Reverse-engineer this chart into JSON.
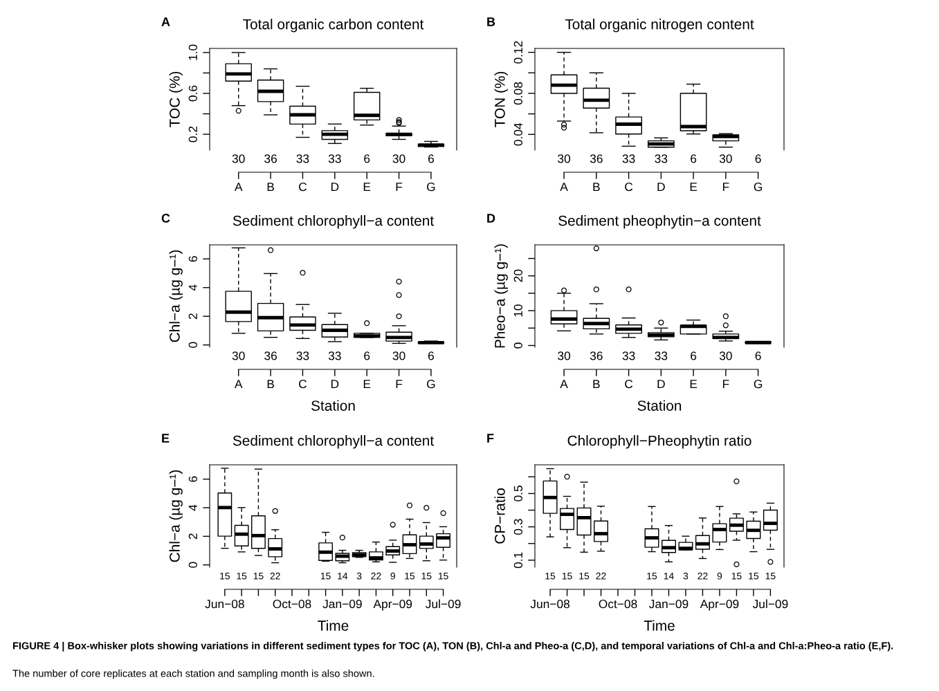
{
  "chart_data": [
    {
      "type": "box",
      "title": "Total organic carbon content",
      "ylabel": "TOC (%)",
      "annotations": [
        "A"
      ],
      "categories": [
        "A",
        "B",
        "C",
        "D",
        "E",
        "F",
        "G"
      ],
      "value_labels": [
        "30",
        "36",
        "33",
        "33",
        "6",
        "30",
        "6"
      ],
      "ylim": [
        0.045,
        1.04
      ],
      "yticks": [
        0.2,
        {
          "value": 0.4,
          "label": null
        },
        0.6,
        {
          "value": 0.8,
          "label": null
        },
        {
          "value": 1.0,
          "label": "1.0"
        }
      ],
      "boxes": [
        {
          "low": 0.48,
          "q1": 0.72,
          "median": 0.79,
          "q3": 0.89,
          "high": 1.0,
          "outliers": [
            0.43
          ]
        },
        {
          "low": 0.39,
          "q1": 0.52,
          "median": 0.62,
          "q3": 0.73,
          "high": 0.84
        },
        {
          "low": 0.17,
          "q1": 0.3,
          "median": 0.39,
          "q3": 0.475,
          "high": 0.67
        },
        {
          "low": 0.11,
          "q1": 0.15,
          "median": 0.2,
          "q3": 0.235,
          "high": 0.3
        },
        {
          "low": 0.29,
          "q1": 0.34,
          "median": 0.385,
          "q3": 0.61,
          "high": 0.65
        },
        {
          "low": 0.15,
          "q1": 0.185,
          "median": 0.2,
          "q3": 0.21,
          "high": 0.28,
          "outliers": [
            0.31,
            0.32,
            0.34
          ]
        },
        {
          "low": 0.075,
          "q1": 0.08,
          "median": 0.095,
          "q3": 0.1,
          "high": 0.13
        }
      ]
    },
    {
      "type": "box",
      "title": "Total organic nitrogen content",
      "ylabel": "TON (%)",
      "annotations": [
        "B"
      ],
      "categories": [
        "A",
        "B",
        "C",
        "D",
        "E",
        "F",
        "G"
      ],
      "value_labels": [
        "30",
        "36",
        "33",
        "33",
        "6",
        "30",
        "6"
      ],
      "ylim": [
        0.0247,
        0.1238
      ],
      "yticks": [
        0.04,
        {
          "value": 0.06,
          "label": null
        },
        0.08,
        {
          "value": 0.1,
          "label": null
        },
        0.12
      ],
      "boxes": [
        {
          "low": 0.053,
          "q1": 0.08,
          "median": 0.088,
          "q3": 0.098,
          "high": 0.12,
          "outliers": [
            0.0465,
            0.0495
          ]
        },
        {
          "low": 0.0416,
          "q1": 0.0657,
          "median": 0.0733,
          "q3": 0.085,
          "high": 0.1
        },
        {
          "low": 0.0285,
          "q1": 0.0404,
          "median": 0.05,
          "q3": 0.057,
          "high": 0.08
        },
        {
          "low": 0.0276,
          "q1": 0.0276,
          "median": 0.0307,
          "q3": 0.0337,
          "high": 0.0366
        },
        {
          "low": 0.0404,
          "q1": 0.0436,
          "median": 0.0476,
          "q3": 0.08,
          "high": 0.089
        },
        {
          "low": 0.0276,
          "q1": 0.0337,
          "median": 0.038,
          "q3": 0.0395,
          "high": 0.0407
        },
        null
      ]
    },
    {
      "type": "box",
      "title": "Sediment chlorophyll−a content",
      "xlabel": "Station",
      "ylabel": "Chl−a (µg g−¹)",
      "annotations": [
        "C"
      ],
      "categories": [
        "A",
        "B",
        "C",
        "D",
        "E",
        "F",
        "G"
      ],
      "value_labels": [
        "30",
        "36",
        "33",
        "33",
        "6",
        "30",
        "6"
      ],
      "ylim": [
        -0.16,
        6.98
      ],
      "yticks": [
        0,
        2,
        4,
        6
      ],
      "boxes": [
        {
          "low": 0.81,
          "q1": 1.63,
          "median": 2.29,
          "q3": 3.74,
          "high": 6.77
        },
        {
          "low": 0.53,
          "q1": 0.98,
          "median": 1.9,
          "q3": 2.9,
          "high": 4.98,
          "outliers": [
            6.61
          ]
        },
        {
          "low": 0.45,
          "q1": 1.02,
          "median": 1.39,
          "q3": 1.95,
          "high": 2.82,
          "outliers": [
            5.03
          ]
        },
        {
          "low": 0.23,
          "q1": 0.55,
          "median": 1.02,
          "q3": 1.42,
          "high": 2.21
        },
        {
          "low": 0.52,
          "q1": 0.52,
          "median": 0.63,
          "q3": 0.81,
          "high": 0.81,
          "outliers": [
            1.52
          ]
        },
        {
          "low": 0.11,
          "q1": 0.27,
          "median": 0.52,
          "q3": 0.89,
          "high": 1.34,
          "outliers": [
            2.0,
            3.48,
            4.42
          ]
        },
        {
          "low": 0.13,
          "q1": 0.13,
          "median": 0.16,
          "q3": 0.19,
          "high": 0.27
        }
      ]
    },
    {
      "type": "box",
      "title": "Sediment pheophytin−a content",
      "xlabel": "Station",
      "ylabel": "Pheo−a (µg g−¹)",
      "annotations": [
        "D"
      ],
      "categories": [
        "A",
        "B",
        "C",
        "D",
        "E",
        "F",
        "G"
      ],
      "value_labels": [
        "30",
        "36",
        "33",
        "33",
        "6",
        "30",
        "6"
      ],
      "ylim": [
        -0.5,
        28.9
      ],
      "yticks": [
        0,
        {
          "value": 5,
          "label": null
        },
        10,
        {
          "value": 15,
          "label": null
        },
        20,
        {
          "value": 25,
          "label": null
        }
      ],
      "boxes": [
        {
          "low": 4.2,
          "q1": 6.2,
          "median": 7.6,
          "q3": 10.0,
          "high": 15.0,
          "outliers": [
            15.8
          ]
        },
        {
          "low": 3.3,
          "q1": 4.8,
          "median": 6.3,
          "q3": 7.8,
          "high": 12.0,
          "outliers": [
            16.1,
            27.9
          ]
        },
        {
          "low": 2.3,
          "q1": 3.5,
          "median": 4.7,
          "q3": 5.9,
          "high": 7.9,
          "outliers": [
            16.1
          ]
        },
        {
          "low": 1.6,
          "q1": 2.5,
          "median": 3.0,
          "q3": 3.7,
          "high": 5.0,
          "outliers": [
            6.6
          ]
        },
        {
          "low": 3.3,
          "q1": 3.3,
          "median": 5.5,
          "q3": 5.8,
          "high": 7.3
        },
        {
          "low": 1.3,
          "q1": 2.0,
          "median": 2.3,
          "q3": 3.3,
          "high": 4.1,
          "outliers": [
            5.8,
            8.4
          ]
        },
        {
          "low": 0.75,
          "q1": 0.8,
          "median": 0.85,
          "q3": 0.9,
          "high": 0.95
        }
      ]
    },
    {
      "type": "box",
      "title": "Sediment chlorophyll−a content",
      "xlabel": "Time",
      "ylabel": "Chl−a (µg g−¹)",
      "annotations": [
        "E"
      ],
      "categories": [
        "Jun−08",
        null,
        null,
        null,
        "Oct−08",
        null,
        null,
        "Jan−09",
        null,
        null,
        "Apr−09",
        null,
        null,
        "Jul−09"
      ],
      "value_labels": [
        "15",
        "15",
        "15",
        "22",
        null,
        null,
        "15",
        "14",
        "3",
        "22",
        "9",
        "15",
        "15",
        "15"
      ],
      "ylim": [
        -0.16,
        7.0
      ],
      "yticks": [
        0,
        2,
        4,
        6
      ],
      "boxes": [
        {
          "low": 1.16,
          "q1": 2.01,
          "median": 4.01,
          "q3": 5.03,
          "high": 6.76
        },
        {
          "low": 0.91,
          "q1": 1.33,
          "median": 2.15,
          "q3": 2.77,
          "high": 4.01
        },
        {
          "low": 0.66,
          "q1": 1.16,
          "median": 2.05,
          "q3": 3.43,
          "high": 6.7
        },
        {
          "low": 0.15,
          "q1": 0.57,
          "median": 1.12,
          "q3": 1.84,
          "high": 2.46,
          "outliers": [
            3.77
          ]
        },
        null,
        null,
        {
          "low": 0.26,
          "q1": 0.31,
          "median": 0.89,
          "q3": 1.54,
          "high": 2.28
        },
        {
          "low": 0.15,
          "q1": 0.29,
          "median": 0.61,
          "q3": 0.81,
          "high": 1.02,
          "outliers": [
            1.91
          ]
        },
        {
          "low": 0.53,
          "q1": 0.58,
          "median": 0.71,
          "q3": 0.86,
          "high": 1.02
        },
        {
          "low": 0.21,
          "q1": 0.34,
          "median": 0.49,
          "q3": 0.91,
          "high": 1.6
        },
        {
          "low": 0.18,
          "q1": 0.7,
          "median": 0.97,
          "q3": 1.28,
          "high": 1.73,
          "outliers": [
            2.81
          ]
        },
        {
          "low": 0.45,
          "q1": 0.79,
          "median": 1.41,
          "q3": 2.1,
          "high": 3.2,
          "outliers": [
            4.16
          ]
        },
        {
          "low": 0.29,
          "q1": 1.15,
          "median": 1.46,
          "q3": 2.01,
          "high": 2.96,
          "outliers": [
            3.99
          ]
        },
        {
          "low": 0.34,
          "q1": 1.23,
          "median": 1.89,
          "q3": 2.18,
          "high": 2.67,
          "outliers": [
            3.62
          ]
        }
      ]
    },
    {
      "type": "box",
      "title": "Chlorophyll−Pheophytin ratio",
      "xlabel": "Time",
      "ylabel": "CP−ratio",
      "annotations": [
        "F",
        "FIGURE 4 | Box-whisker plots showing variations in different sediment types for TOC (A), TON (B), Chl-a and Pheo-a (C,D), and temporal variations of Chl-a and Chl-a:Pheo-a ratio (E,F).",
        "The number of core replicates at each station and sampling month is also shown."
      ],
      "categories": [
        "Jun−08",
        null,
        null,
        null,
        "Oct−08",
        null,
        null,
        "Jan−09",
        null,
        null,
        "Apr−09",
        null,
        null,
        "Jul−09"
      ],
      "value_labels": [
        "15",
        "15",
        "15",
        "22",
        null,
        null,
        "15",
        "14",
        "3",
        "22",
        "9",
        "15",
        "15",
        "15"
      ],
      "ylim": [
        0.058,
        0.672
      ],
      "yticks": [
        0.1,
        {
          "value": 0.2,
          "label": null
        },
        0.3,
        {
          "value": 0.4,
          "label": null
        },
        0.5,
        {
          "value": 0.6,
          "label": null
        }
      ],
      "boxes": [
        {
          "low": 0.24,
          "q1": 0.381,
          "median": 0.476,
          "q3": 0.575,
          "high": 0.649
        },
        {
          "low": 0.175,
          "q1": 0.284,
          "median": 0.375,
          "q3": 0.41,
          "high": 0.483,
          "outliers": [
            0.601
          ]
        },
        {
          "low": 0.148,
          "q1": 0.251,
          "median": 0.355,
          "q3": 0.413,
          "high": 0.568
        },
        {
          "low": 0.154,
          "q1": 0.212,
          "median": 0.259,
          "q3": 0.335,
          "high": 0.424
        },
        null,
        null,
        {
          "low": 0.151,
          "q1": 0.178,
          "median": 0.234,
          "q3": 0.288,
          "high": 0.422
        },
        {
          "low": 0.09,
          "q1": 0.146,
          "median": 0.175,
          "q3": 0.219,
          "high": 0.308
        },
        {
          "low": 0.162,
          "q1": 0.162,
          "median": 0.171,
          "q3": 0.207,
          "high": 0.244
        },
        {
          "low": 0.11,
          "q1": 0.166,
          "median": 0.198,
          "q3": 0.248,
          "high": 0.353
        },
        {
          "low": 0.164,
          "q1": 0.209,
          "median": 0.284,
          "q3": 0.319,
          "high": 0.422
        },
        {
          "low": 0.22,
          "q1": 0.274,
          "median": 0.31,
          "q3": 0.352,
          "high": 0.378,
          "outliers": [
            0.075,
            0.573
          ]
        },
        {
          "low": 0.151,
          "q1": 0.23,
          "median": 0.279,
          "q3": 0.334,
          "high": 0.389
        },
        {
          "low": 0.165,
          "q1": 0.28,
          "median": 0.321,
          "q3": 0.4,
          "high": 0.442,
          "outliers": [
            0.09
          ]
        }
      ]
    }
  ]
}
